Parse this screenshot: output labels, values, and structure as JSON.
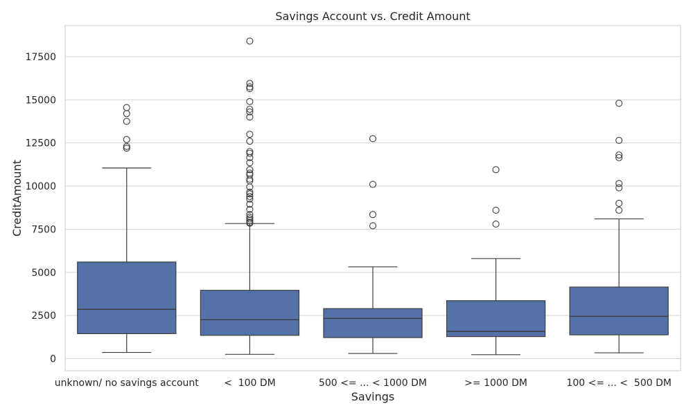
{
  "chart_data": {
    "type": "box",
    "title": "Savings Account vs. Credit Amount",
    "xlabel": "Savings",
    "ylabel": "CreditAmount",
    "ylim": [
      -700,
      19300
    ],
    "yticks": [
      0,
      2500,
      5000,
      7500,
      10000,
      12500,
      15000,
      17500
    ],
    "grid": "horizontal",
    "box_color": "#5572a8",
    "line_color": "#3d3d3d",
    "categories": [
      {
        "label": "unknown/ no savings account",
        "whisker_low": 360,
        "q1": 1450,
        "median": 2860,
        "q3": 5600,
        "whisker_high": 11050,
        "outliers": [
          12200,
          12300,
          12700,
          13750,
          14200,
          14550
        ]
      },
      {
        "label": "<  100 DM",
        "whisker_low": 250,
        "q1": 1350,
        "median": 2260,
        "q3": 3960,
        "whisker_high": 7830,
        "outliers": [
          7850,
          7900,
          8000,
          8100,
          8200,
          8350,
          8650,
          8950,
          9250,
          9400,
          9550,
          9650,
          9950,
          10300,
          10400,
          10650,
          10750,
          10950,
          11350,
          11650,
          11900,
          12000,
          12600,
          13000,
          14000,
          14300,
          14450,
          14900,
          15650,
          15750,
          15950,
          18400
        ]
      },
      {
        "label": "500 <= ... < 1000 DM",
        "whisker_low": 300,
        "q1": 1220,
        "median": 2330,
        "q3": 2900,
        "whisker_high": 5320,
        "outliers": [
          7700,
          8350,
          10100,
          12750
        ]
      },
      {
        "label": ">= 1000 DM",
        "whisker_low": 230,
        "q1": 1280,
        "median": 1580,
        "q3": 3360,
        "whisker_high": 5800,
        "outliers": [
          7800,
          8600,
          10950
        ]
      },
      {
        "label": "100 <= ... <  500 DM",
        "whisker_low": 340,
        "q1": 1380,
        "median": 2450,
        "q3": 4150,
        "whisker_high": 8100,
        "outliers": [
          8600,
          9000,
          9900,
          10150,
          11650,
          11800,
          12650,
          14800
        ]
      }
    ]
  }
}
